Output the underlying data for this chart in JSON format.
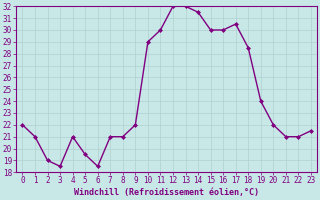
{
  "x": [
    0,
    1,
    2,
    3,
    4,
    5,
    6,
    7,
    8,
    9,
    10,
    11,
    12,
    13,
    14,
    15,
    16,
    17,
    18,
    19,
    20,
    21,
    22,
    23
  ],
  "y": [
    22,
    21,
    19,
    18.5,
    21,
    19.5,
    18.5,
    21,
    21,
    22,
    29,
    30,
    32,
    32,
    31.5,
    30,
    30,
    30.5,
    28.5,
    24,
    22,
    21,
    21,
    21.5
  ],
  "xlabel": "Windchill (Refroidissement éolien,°C)",
  "ylabel": "",
  "ylim": [
    18,
    32
  ],
  "xlim_min": -0.5,
  "xlim_max": 23.5,
  "yticks": [
    18,
    19,
    20,
    21,
    22,
    23,
    24,
    25,
    26,
    27,
    28,
    29,
    30,
    31,
    32
  ],
  "xticks": [
    0,
    1,
    2,
    3,
    4,
    5,
    6,
    7,
    8,
    9,
    10,
    11,
    12,
    13,
    14,
    15,
    16,
    17,
    18,
    19,
    20,
    21,
    22,
    23
  ],
  "line_color": "#800080",
  "marker": "D",
  "marker_size": 2.0,
  "bg_color": "#c8e8e8",
  "grid_color": "#b0d0d0",
  "tick_color": "#800080",
  "label_color": "#800080",
  "font_size": 5.5,
  "xlabel_fontsize": 6.0,
  "linewidth": 1.0
}
